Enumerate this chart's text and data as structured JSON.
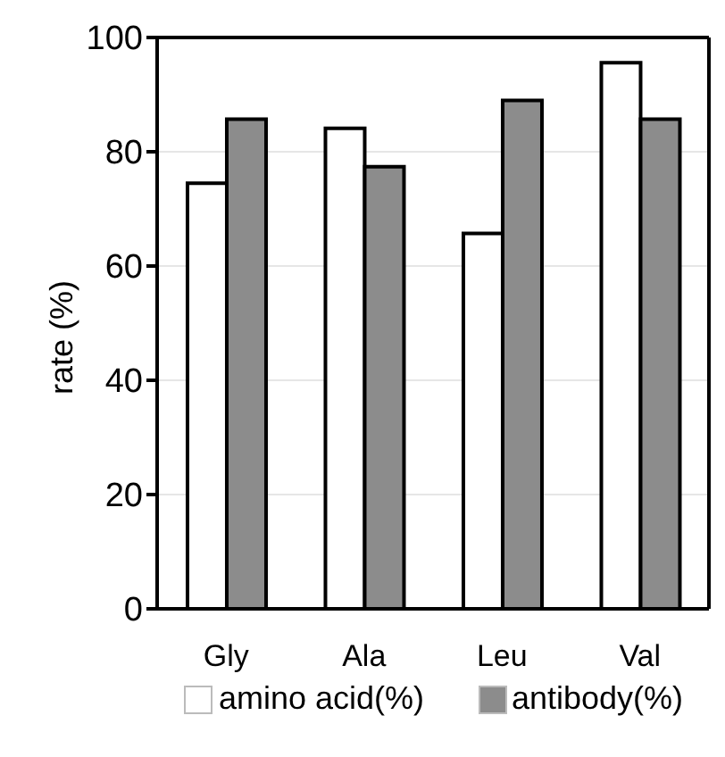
{
  "chart_data": {
    "type": "bar",
    "ylabel": "rate (%)",
    "categories": [
      "Gly",
      "Ala",
      "Leu",
      "Val"
    ],
    "series": [
      {
        "name": "amino acid(%)",
        "color": "#ffffff",
        "values": [
          74.5,
          84.1,
          65.7,
          95.6
        ]
      },
      {
        "name": "antibody(%)",
        "color": "#8c8c8c",
        "values": [
          85.7,
          77.4,
          89.0,
          85.7
        ]
      }
    ],
    "ylim": [
      0,
      100
    ],
    "yticks": [
      0,
      20,
      40,
      60,
      80,
      100
    ],
    "grid": "y",
    "legend": "bottom"
  }
}
